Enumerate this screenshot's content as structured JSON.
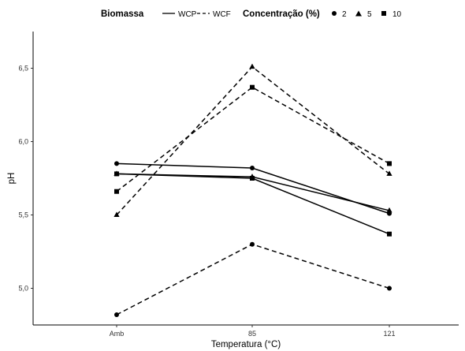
{
  "chart_data": {
    "type": "line",
    "xlabel": "Temperatura (°C)",
    "ylabel": "pH",
    "categories": [
      "Amb",
      "85",
      "121"
    ],
    "ylim": [
      4.75,
      6.75
    ],
    "yticks": [
      "5,0",
      "5,5",
      "6,0",
      "6,5"
    ],
    "ytick_values": [
      5.0,
      5.5,
      6.0,
      6.5
    ],
    "grid": false,
    "legend_position": "top",
    "legend": {
      "biomassa_title": "Biomassa",
      "biomassa_items": [
        {
          "label": "WCP",
          "line": "solid"
        },
        {
          "label": "WCF",
          "line": "dashed"
        }
      ],
      "concentracao_title": "Concentração (%)",
      "concentracao_items": [
        {
          "label": "2",
          "shape": "circle"
        },
        {
          "label": "5",
          "shape": "triangle"
        },
        {
          "label": "10",
          "shape": "square"
        }
      ]
    },
    "series": [
      {
        "biomassa": "WCP",
        "concentracao": "2",
        "line": "solid",
        "shape": "circle",
        "values": [
          5.85,
          5.82,
          5.51
        ]
      },
      {
        "biomassa": "WCP",
        "concentracao": "5",
        "line": "solid",
        "shape": "triangle",
        "values": [
          5.78,
          5.76,
          5.53
        ]
      },
      {
        "biomassa": "WCP",
        "concentracao": "10",
        "line": "solid",
        "shape": "square",
        "values": [
          5.78,
          5.75,
          5.37
        ]
      },
      {
        "biomassa": "WCF",
        "concentracao": "2",
        "line": "dashed",
        "shape": "circle",
        "values": [
          4.82,
          5.3,
          5.0
        ]
      },
      {
        "biomassa": "WCF",
        "concentracao": "5",
        "line": "dashed",
        "shape": "triangle",
        "values": [
          5.5,
          6.51,
          5.78
        ]
      },
      {
        "biomassa": "WCF",
        "concentracao": "10",
        "line": "dashed",
        "shape": "square",
        "values": [
          5.66,
          6.37,
          5.85
        ]
      }
    ]
  }
}
